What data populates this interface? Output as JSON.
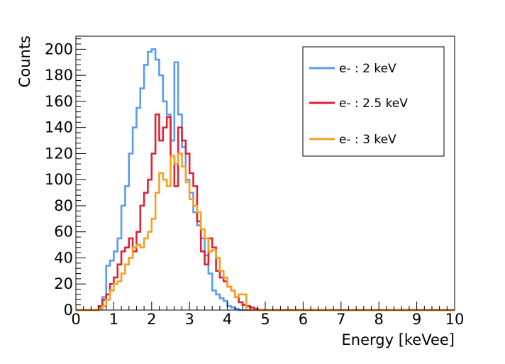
{
  "chart_data": {
    "type": "histogram",
    "xlabel": "Energy [keVee]",
    "ylabel": "Counts",
    "xlim": [
      0,
      10
    ],
    "ylim": [
      0,
      210
    ],
    "bin_width": 0.1,
    "x_ticks": [
      0,
      1,
      2,
      3,
      4,
      5,
      6,
      7,
      8,
      9,
      10
    ],
    "y_ticks": [
      0,
      20,
      40,
      60,
      80,
      100,
      120,
      140,
      160,
      180,
      200
    ],
    "legend_position": "top-right",
    "series": [
      {
        "name": "e- : 2 keV",
        "color": "#5b9bf0",
        "values": [
          0,
          0,
          0,
          0,
          0,
          0,
          2,
          10,
          34,
          38,
          45,
          55,
          80,
          95,
          120,
          140,
          155,
          170,
          188,
          198,
          200,
          192,
          180,
          160,
          150,
          130,
          190,
          150,
          125,
          100,
          90,
          75,
          65,
          55,
          42,
          28,
          15,
          12,
          9,
          7,
          3,
          2,
          1,
          0,
          0,
          0,
          0,
          0,
          0,
          0
        ]
      },
      {
        "name": "e- : 2.5 keV",
        "color": "#dd2233",
        "values": [
          0,
          0,
          0,
          0,
          0,
          0,
          3,
          8,
          12,
          20,
          25,
          35,
          45,
          48,
          55,
          45,
          60,
          80,
          90,
          100,
          120,
          150,
          130,
          140,
          148,
          118,
          95,
          140,
          130,
          120,
          105,
          95,
          68,
          45,
          35,
          55,
          48,
          30,
          25,
          22,
          18,
          15,
          10,
          6,
          4,
          3,
          2,
          1,
          0,
          0
        ]
      },
      {
        "name": "e- : 3 keV",
        "color": "#f5a020",
        "values": [
          0,
          0,
          0,
          0,
          0,
          0,
          1,
          3,
          8,
          15,
          20,
          22,
          28,
          35,
          40,
          48,
          50,
          48,
          55,
          60,
          70,
          90,
          105,
          100,
          95,
          118,
          112,
          120,
          110,
          98,
          85,
          80,
          75,
          62,
          55,
          45,
          46,
          40,
          30,
          25,
          18,
          15,
          10,
          12,
          12,
          0,
          0,
          0,
          0,
          0
        ]
      }
    ]
  }
}
